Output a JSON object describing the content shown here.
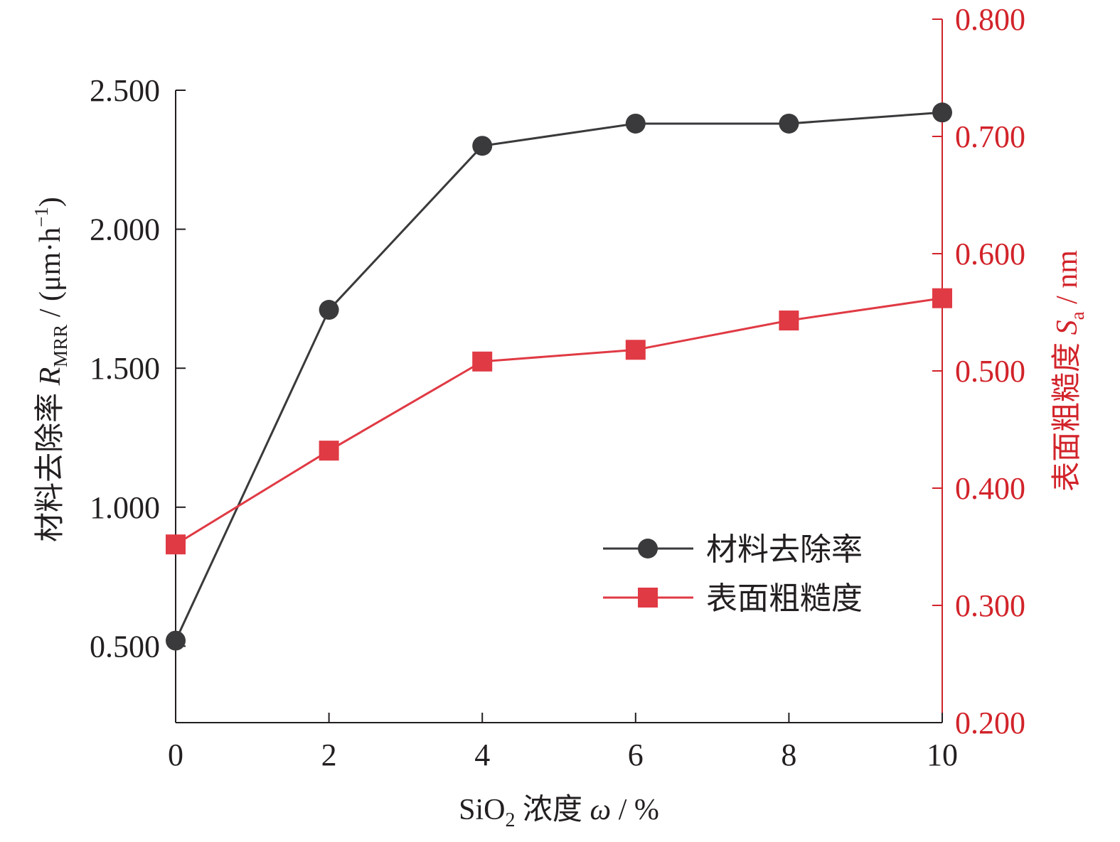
{
  "chart_data": {
    "type": "line",
    "x": [
      0,
      2,
      4,
      6,
      8,
      10
    ],
    "xlim": [
      0,
      10
    ],
    "x_ticks": [
      "0",
      "2",
      "4",
      "6",
      "8",
      "10"
    ],
    "xlabel": {
      "prefix": "SiO",
      "sub": "2",
      "text": " 浓度 ",
      "symbol": "ω",
      "suffix": " / %"
    },
    "y_left": {
      "lim": [
        0.225,
        2.5
      ],
      "ticks": [
        "0.500",
        "1.000",
        "1.500",
        "2.000",
        "2.500"
      ],
      "label": {
        "text": "材料去除率 ",
        "symbol": "R",
        "sub": "MRR",
        "unit": " / (μm·h",
        "sup": "−1",
        "close": ")"
      },
      "color": "#231f20"
    },
    "y_right": {
      "lim": [
        0.2,
        0.8
      ],
      "ticks": [
        "0.200",
        "0.300",
        "0.400",
        "0.500",
        "0.600",
        "0.700",
        "0.800"
      ],
      "label": {
        "text": "表面粗糙度 ",
        "symbol": "S",
        "sub": "a",
        "unit": " / nm"
      },
      "color": "#d2232a"
    },
    "series": [
      {
        "name": "材料去除率",
        "axis": "left",
        "marker": "circle",
        "color": "#3a3a3c",
        "values": [
          0.52,
          1.71,
          2.3,
          2.38,
          2.38,
          2.42
        ]
      },
      {
        "name": "表面粗糙度",
        "axis": "right",
        "marker": "square",
        "color": "#e03a44",
        "values": [
          0.352,
          0.432,
          0.508,
          0.518,
          0.543,
          0.562
        ]
      }
    ],
    "legend_position": "center-right",
    "grid": false
  }
}
